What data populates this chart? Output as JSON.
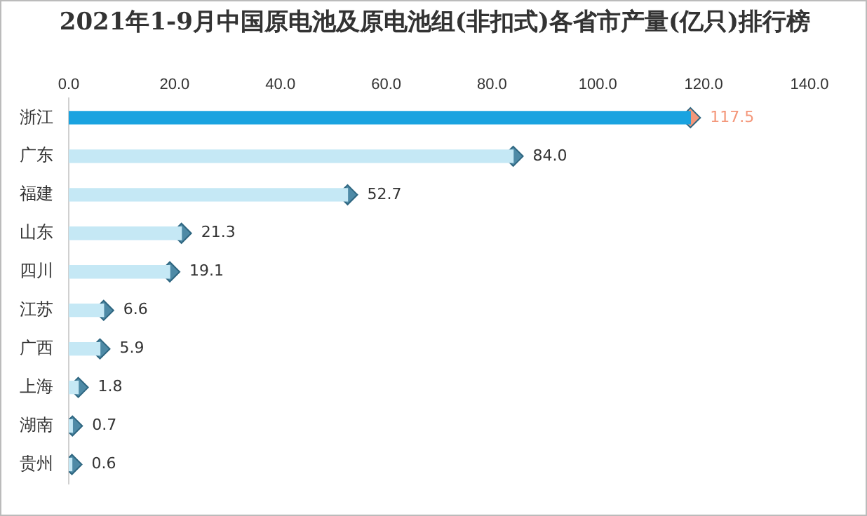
{
  "chart_data": {
    "type": "bar",
    "orientation": "horizontal",
    "title": "2021年1-9月中国原电池及原电池组(非扣式)各省市产量(亿只)排行榜",
    "categories": [
      "浙江",
      "广东",
      "福建",
      "山东",
      "四川",
      "江苏",
      "广西",
      "上海",
      "湖南",
      "贵州"
    ],
    "series": [
      {
        "type": "bar",
        "values": [
          117.5,
          84.0,
          52.7,
          21.3,
          19.1,
          6.6,
          5.9,
          1.8,
          0.7,
          0.6
        ],
        "colors": [
          "#1aa3e0",
          "#c5e8f5",
          "#c5e8f5",
          "#c5e8f5",
          "#c5e8f5",
          "#c5e8f5",
          "#c5e8f5",
          "#c5e8f5",
          "#c5e8f5",
          "#c5e8f5"
        ]
      },
      {
        "type": "scatter",
        "marker": "diamond",
        "values": [
          117.5,
          84.0,
          52.7,
          21.3,
          19.1,
          6.6,
          5.9,
          1.8,
          0.7,
          0.6
        ],
        "colors": [
          "#f4977a",
          "#4e8aa6",
          "#4e8aa6",
          "#4e8aa6",
          "#4e8aa6",
          "#4e8aa6",
          "#4e8aa6",
          "#4e8aa6",
          "#4e8aa6",
          "#4e8aa6"
        ],
        "value_labels": [
          "117.5",
          "84.0",
          "52.7",
          "21.3",
          "19.1",
          "6.6",
          "5.9",
          "1.8",
          "0.7",
          "0.6"
        ]
      }
    ],
    "xlim": [
      0,
      140
    ],
    "xticks": [
      {
        "value": 0,
        "label": "0.0"
      },
      {
        "value": 20,
        "label": "20.0"
      },
      {
        "value": 40,
        "label": "40.0"
      },
      {
        "value": 60,
        "label": "60.0"
      },
      {
        "value": 80,
        "label": "80.0"
      },
      {
        "value": 100,
        "label": "100.0"
      },
      {
        "value": 120,
        "label": "120.0"
      },
      {
        "value": 140,
        "label": "140.0"
      }
    ],
    "grid": false,
    "legend": false
  }
}
